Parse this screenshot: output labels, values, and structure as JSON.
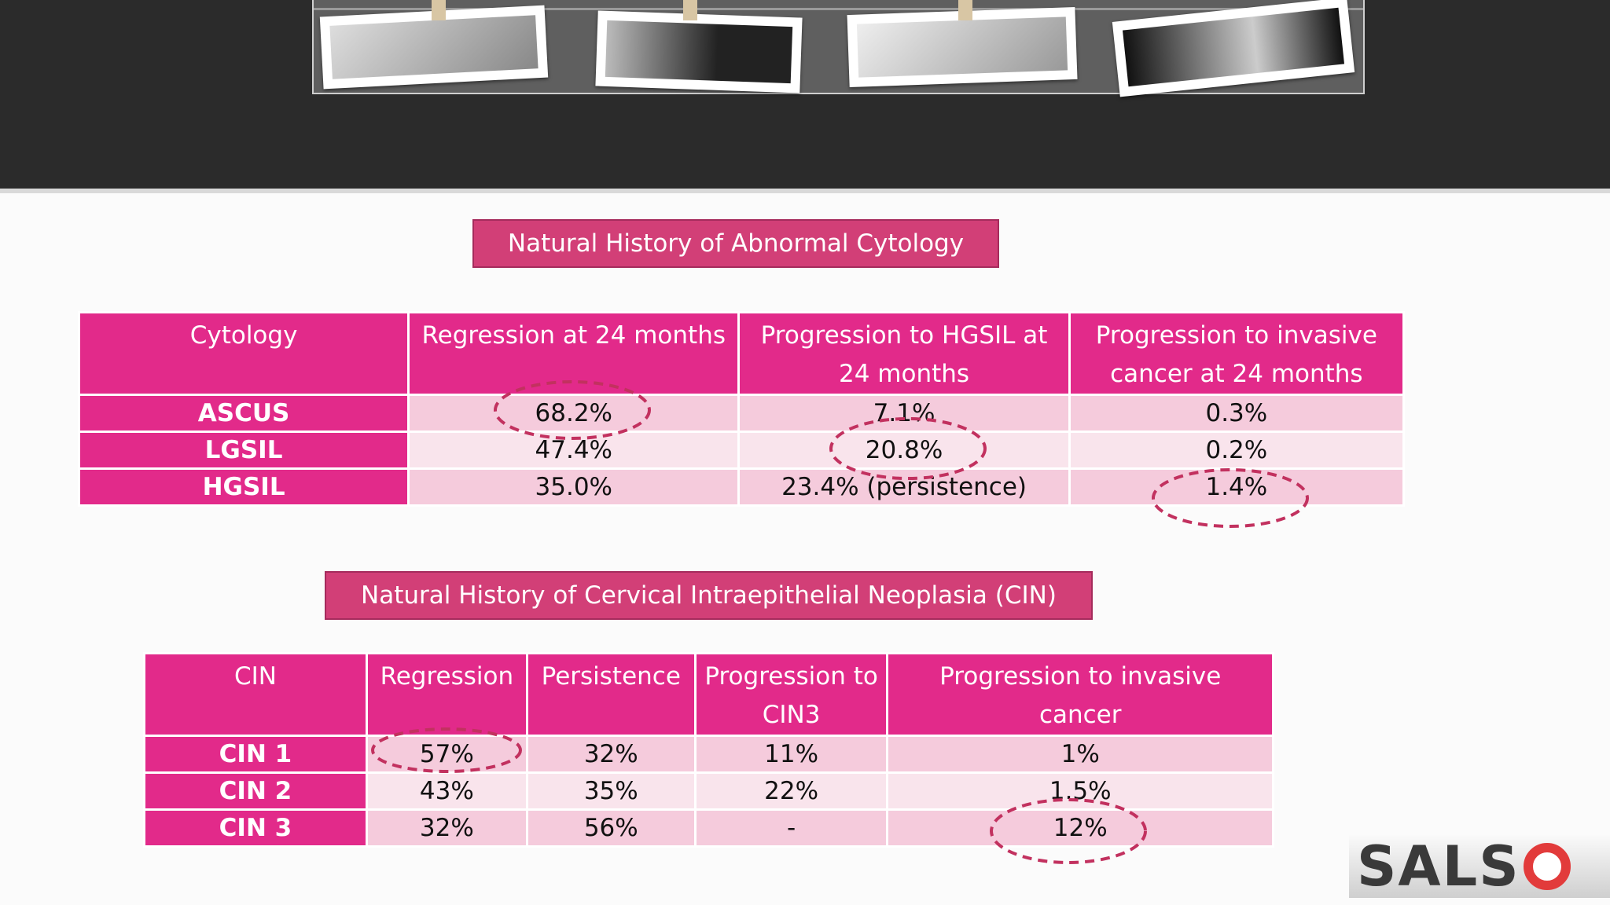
{
  "colors": {
    "header_bg": "#e22a8a",
    "row_odd": "#f5cbdc",
    "row_even": "#f9e4ec",
    "title_bg": "#d23f77",
    "circle": "#c2315f"
  },
  "cytology_section": {
    "title": "Natural History of Abnormal Cytology",
    "headers": [
      "Cytology",
      "Regression at 24 months",
      "Progression to HGSIL at 24 months",
      "Progression to invasive cancer at 24 months"
    ],
    "rows": [
      {
        "label": "ASCUS",
        "values": [
          "68.2%",
          "7.1%",
          "0.3%"
        ]
      },
      {
        "label": "LGSIL",
        "values": [
          "47.4%",
          "20.8%",
          "0.2%"
        ]
      },
      {
        "label": "HGSIL",
        "values": [
          "35.0%",
          "23.4% (persistence)",
          "1.4%"
        ]
      }
    ]
  },
  "cin_section": {
    "title": "Natural History of Cervical Intraepithelial Neoplasia (CIN)",
    "headers": [
      "CIN",
      "Regression",
      "Persistence",
      "Progression to CIN3",
      "Progression to invasive cancer"
    ],
    "rows": [
      {
        "label": "CIN 1",
        "values": [
          "57%",
          "32%",
          "11%",
          "1%"
        ]
      },
      {
        "label": "CIN 2",
        "values": [
          "43%",
          "35%",
          "22%",
          "1.5%"
        ]
      },
      {
        "label": "CIN 3",
        "values": [
          "32%",
          "56%",
          "-",
          "12%"
        ]
      }
    ]
  },
  "logo": {
    "text": "SALS"
  }
}
